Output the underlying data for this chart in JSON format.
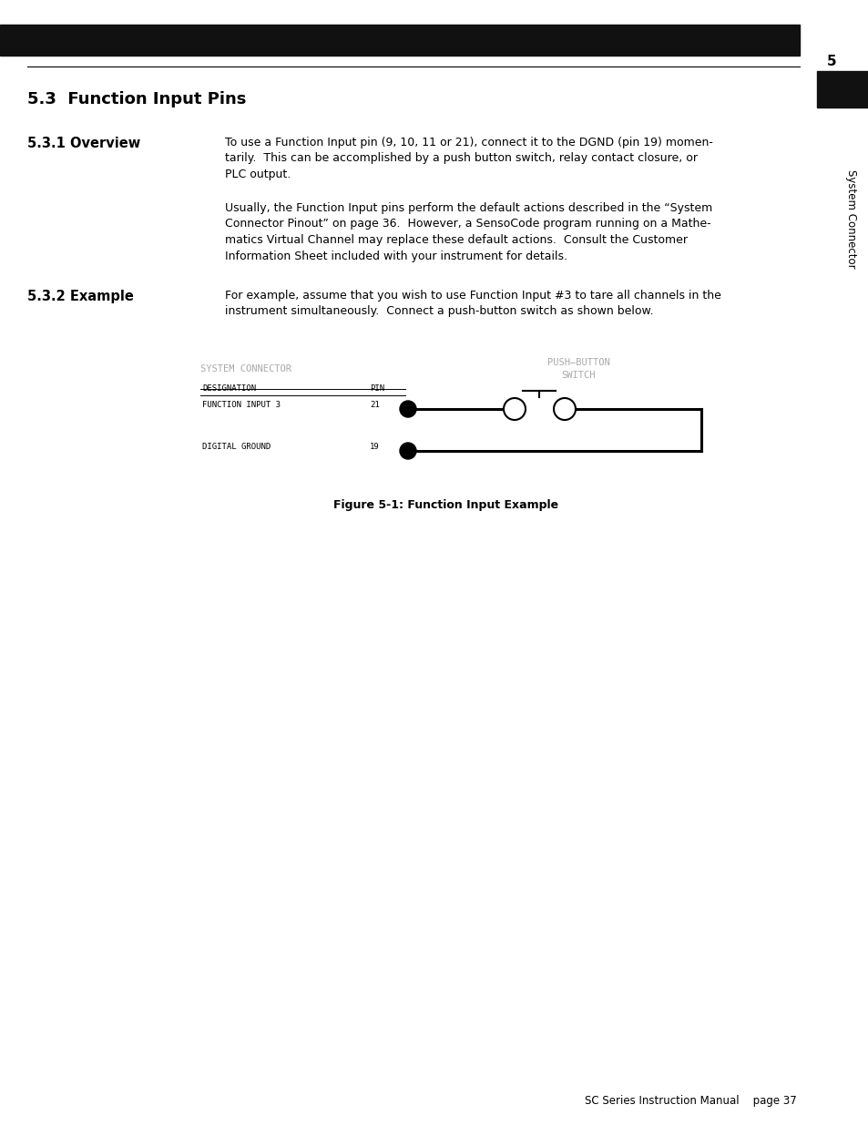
{
  "page_bg": "#ffffff",
  "top_bar_color": "#111111",
  "section_number": "5",
  "side_tab_color": "#111111",
  "side_label": "System Connector",
  "title": "5.3  Function Input Pins",
  "section_531": "5.3.1 Overview",
  "text_531_1": "To use a Function Input pin (9, 10, 11 or 21), connect it to the DGND (pin 19) momen-\ntarily.  This can be accomplished by a push button switch, relay contact closure, or\nPLC output.",
  "text_531_2": "Usually, the Function Input pins perform the default actions described in the “System\nConnector Pinout” on page 36.  However, a SensoCode program running on a Mathe-\nmatics Virtual Channel may replace these default actions.  Consult the Customer\nInformation Sheet included with your instrument for details.",
  "section_532": "5.3.2 Example",
  "text_532": "For example, assume that you wish to use Function Input #3 to tare all channels in the\ninstrument simultaneously.  Connect a push-button switch as shown below.",
  "figure_caption": "Figure 5-1: Function Input Example",
  "footer_text": "SC Series Instruction Manual    page 37",
  "diagram": {
    "sys_connector_label": "SYSTEM CONNECTOR",
    "designation_label": "DESIGNATION",
    "pin_label": "PIN",
    "row1_label": "FUNCTION INPUT 3",
    "row1_pin": "21",
    "row2_label": "DIGITAL GROUND",
    "row2_pin": "19",
    "push_button_line1": "PUSH–BUTTON",
    "push_button_line2": "SWITCH"
  }
}
